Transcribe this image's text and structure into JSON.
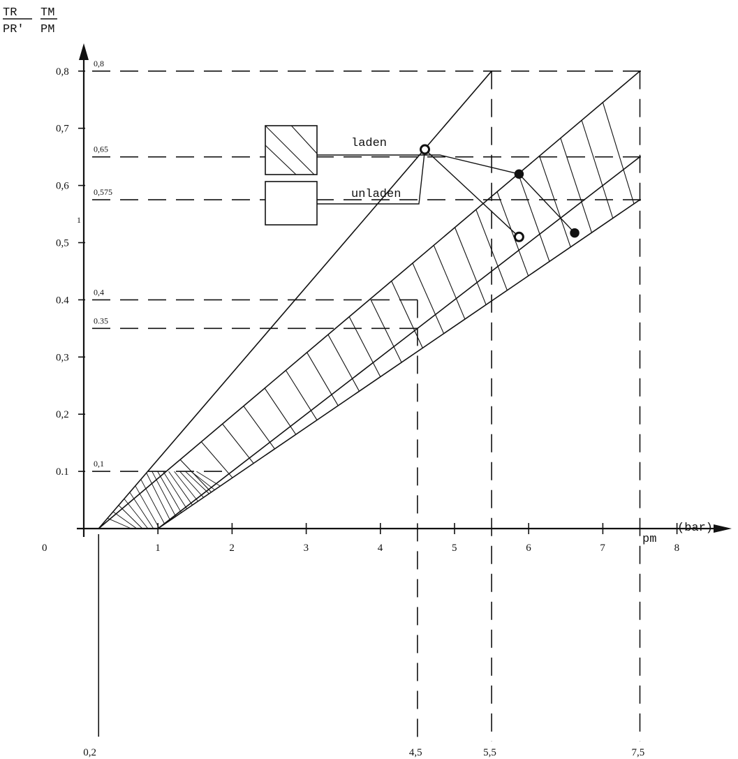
{
  "chart_data": {
    "type": "line",
    "title": "",
    "ylabel_top": [
      "TR",
      "TM"
    ],
    "ylabel_bottom": [
      "PR'",
      "PM"
    ],
    "xlabel": "pm",
    "xunit": "(bar)",
    "xlim": [
      0,
      8.5
    ],
    "ylim": [
      0,
      0.85
    ],
    "grid": false,
    "x_ticks": [
      0,
      1,
      2,
      3,
      4,
      5,
      6,
      7,
      8
    ],
    "x_tick_labels": [
      "0",
      "1",
      "2",
      "3",
      "4",
      "5",
      "6",
      "7",
      "8"
    ],
    "y_ticks": [
      0.1,
      0.2,
      0.3,
      0.4,
      0.5,
      0.6,
      0.7,
      0.8
    ],
    "y_tick_labels": [
      "0.1",
      "0,2",
      "0,3",
      "0.4",
      "0,5",
      "0,6",
      "0,7",
      "0,8"
    ],
    "reference_lines_y": [
      {
        "value": 0.8,
        "label": "0,8"
      },
      {
        "value": 0.65,
        "label": "0,65"
      },
      {
        "value": 0.575,
        "label": "0,575"
      },
      {
        "value": 0.4,
        "label": "0,4"
      },
      {
        "value": 0.35,
        "label": "0.35"
      },
      {
        "value": 0.1,
        "label": "0,1"
      }
    ],
    "reference_lines_x": [
      {
        "value": 4.5,
        "label": "4,5"
      },
      {
        "value": 5.5,
        "label": "5,5"
      },
      {
        "value": 7.5,
        "label": "7,5"
      }
    ],
    "origin_label": "0,2",
    "stray_mark": "1",
    "series": [
      {
        "x": [
          0.2,
          5.5
        ],
        "y": [
          0.0,
          0.8
        ]
      },
      {
        "x": [
          0.2,
          7.5
        ],
        "y": [
          0.0,
          0.8
        ]
      },
      {
        "x": [
          1.0,
          7.5
        ],
        "y": [
          0.0,
          0.65
        ]
      },
      {
        "x": [
          1.0,
          7.5
        ],
        "y": [
          0.0,
          0.575
        ]
      }
    ],
    "laden_band": {
      "upper": {
        "x": [
          0.2,
          7.5
        ],
        "y": [
          0.0,
          0.8
        ]
      },
      "lower": {
        "x": [
          1.0,
          7.5
        ],
        "y": [
          0.0,
          0.575
        ]
      }
    },
    "points": [
      {
        "x": 4.6,
        "y": 0.663,
        "filled": false
      },
      {
        "x": 5.87,
        "y": 0.62,
        "filled": true
      },
      {
        "x": 5.87,
        "y": 0.51,
        "filled": false
      },
      {
        "x": 6.62,
        "y": 0.517,
        "filled": true
      }
    ],
    "legend": [
      {
        "label": "laden",
        "pattern": "hatched"
      },
      {
        "label": "unladen",
        "pattern": "empty"
      }
    ]
  }
}
